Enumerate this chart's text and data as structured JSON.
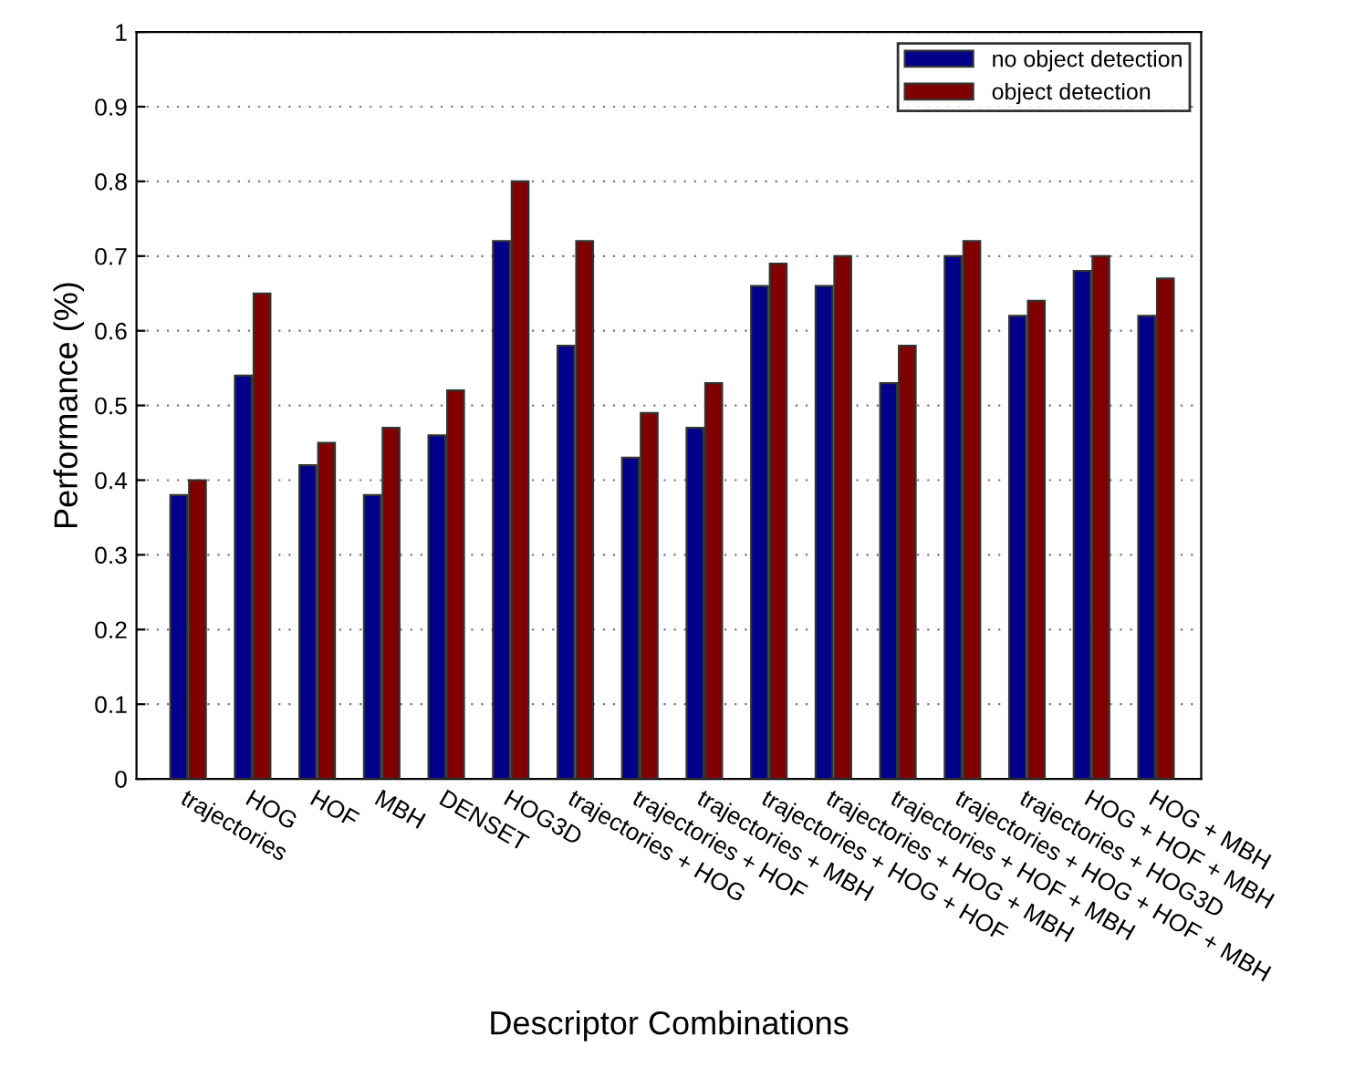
{
  "chart_data": {
    "type": "bar",
    "xlabel": "Descriptor Combinations",
    "ylabel": "Performance (%)",
    "categories": [
      "trajectories",
      "HOG",
      "HOF",
      "MBH",
      "DENSET",
      "HOG3D",
      "trajectories + HOG",
      "trajectories + HOF",
      "trajectories + MBH",
      "trajectories + HOG + HOF",
      "trajectories + HOG + MBH",
      "trajectories + HOF + MBH",
      "trajectories + HOG + HOF + MBH",
      "trajectories + HOG3D",
      "HOG + HOF + MBH",
      "HOG + MBH"
    ],
    "series": [
      {
        "name": "no object detection",
        "color": "#00008b",
        "values": [
          0.38,
          0.54,
          0.42,
          0.38,
          0.46,
          0.72,
          0.58,
          0.43,
          0.47,
          0.66,
          0.66,
          0.53,
          0.7,
          0.62,
          0.68,
          0.62
        ]
      },
      {
        "name": "object detection",
        "color": "#800000",
        "values": [
          0.4,
          0.65,
          0.45,
          0.47,
          0.52,
          0.8,
          0.72,
          0.49,
          0.53,
          0.69,
          0.7,
          0.58,
          0.72,
          0.64,
          0.7,
          0.67
        ]
      }
    ],
    "ylim": [
      0,
      1
    ],
    "yticks": [
      0,
      0.1,
      0.2,
      0.3,
      0.4,
      0.5,
      0.6,
      0.7,
      0.8,
      0.9,
      1
    ],
    "grid": "y",
    "legend": "top right"
  }
}
